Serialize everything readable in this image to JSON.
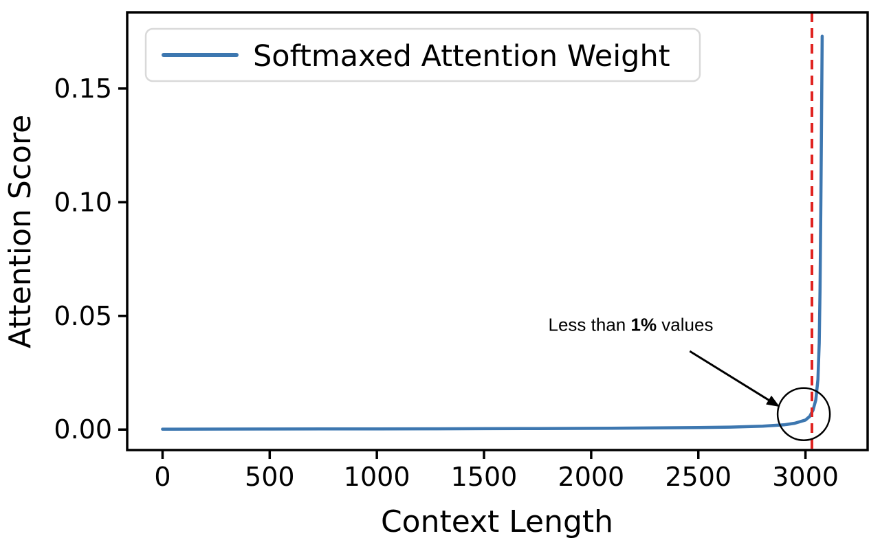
{
  "chart_data": {
    "type": "line",
    "title": "",
    "xlabel": "Context Length",
    "ylabel": "Attention Score",
    "xlim": [
      -165,
      3290
    ],
    "ylim": [
      -0.009,
      0.1835
    ],
    "grid": false,
    "legend_position": "upper-left",
    "xticks": {
      "values": [
        0,
        500,
        1000,
        1500,
        2000,
        2500,
        3000
      ],
      "labels": [
        "0",
        "500",
        "1000",
        "1500",
        "2000",
        "2500",
        "3000"
      ]
    },
    "yticks": {
      "values": [
        0.0,
        0.05,
        0.1,
        0.15
      ],
      "labels": [
        "0.00",
        "0.05",
        "0.10",
        "0.15"
      ]
    },
    "series": [
      {
        "name": "Softmaxed Attention Weight",
        "color": "#3d77b0",
        "points": [
          [
            0,
            0.0002
          ],
          [
            250,
            0.00022
          ],
          [
            500,
            0.00025
          ],
          [
            750,
            0.00028
          ],
          [
            1000,
            0.0003
          ],
          [
            1250,
            0.00035
          ],
          [
            1500,
            0.0004
          ],
          [
            1750,
            0.00045
          ],
          [
            2000,
            0.00055
          ],
          [
            2250,
            0.0007
          ],
          [
            2500,
            0.0009
          ],
          [
            2650,
            0.0011
          ],
          [
            2800,
            0.0015
          ],
          [
            2900,
            0.0021
          ],
          [
            2950,
            0.0028
          ],
          [
            3000,
            0.0042
          ],
          [
            3020,
            0.0058
          ],
          [
            3035,
            0.0085
          ],
          [
            3048,
            0.013
          ],
          [
            3058,
            0.022
          ],
          [
            3064,
            0.038
          ],
          [
            3068,
            0.062
          ],
          [
            3072,
            0.1
          ],
          [
            3075,
            0.138
          ],
          [
            3078,
            0.173
          ]
        ]
      }
    ],
    "vline": {
      "x": 3030,
      "color": "#e02421",
      "style": "dashed"
    },
    "annotation": {
      "prefix": "Less than ",
      "bold": "1%",
      "suffix": " values",
      "text_pos": [
        2185,
        0.0435
      ],
      "arrow_start": [
        2460,
        0.0345
      ],
      "arrow_end": [
        2880,
        0.01
      ],
      "circle_center": [
        2992,
        0.0068
      ],
      "circle_radius_px": 38
    }
  }
}
